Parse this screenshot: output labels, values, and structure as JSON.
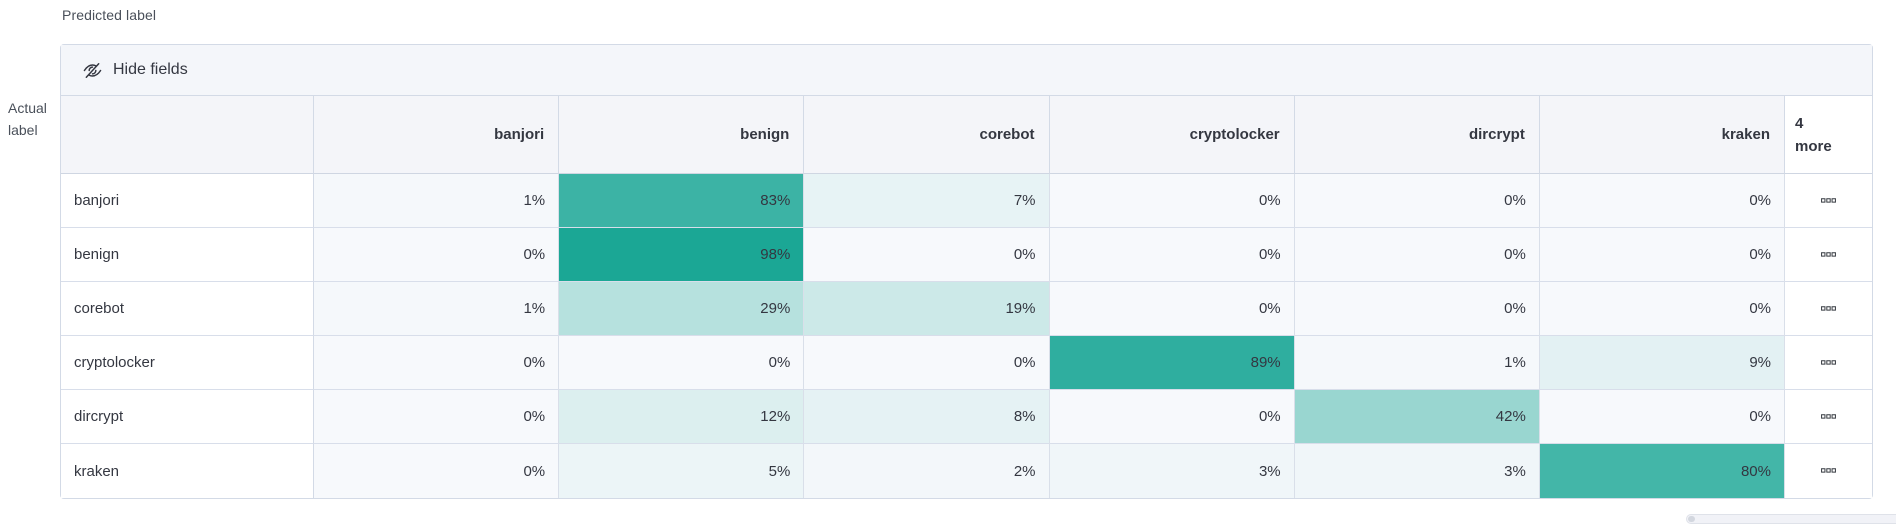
{
  "axes": {
    "predicted_label": "Predicted label",
    "actual_label_line1": "Actual",
    "actual_label_line2": "label"
  },
  "toolbar": {
    "hide_fields_label": "Hide fields",
    "hide_fields_icon": "eye-slash-icon"
  },
  "grid": {
    "columns": [
      "banjori",
      "benign",
      "corebot",
      "cryptolocker",
      "dircrypt",
      "kraken"
    ],
    "more_header": {
      "line1": "4",
      "line2": "more"
    },
    "value_suffix": "%",
    "row_actions_icon": "boxes-horizontal-icon",
    "rows": [
      {
        "label": "banjori",
        "values": [
          1,
          83,
          7,
          0,
          0,
          0
        ]
      },
      {
        "label": "benign",
        "values": [
          0,
          98,
          0,
          0,
          0,
          0
        ]
      },
      {
        "label": "corebot",
        "values": [
          1,
          29,
          19,
          0,
          0,
          0
        ]
      },
      {
        "label": "cryptolocker",
        "values": [
          0,
          0,
          0,
          89,
          1,
          9
        ]
      },
      {
        "label": "dircrypt",
        "values": [
          0,
          12,
          8,
          0,
          42,
          0
        ]
      },
      {
        "label": "kraken",
        "values": [
          0,
          5,
          2,
          3,
          3,
          80
        ]
      }
    ]
  },
  "heatmap": {
    "base_color": "#f7f9fc",
    "accent_color": "#16a593",
    "cell_text_color": "#343741"
  },
  "colors": {
    "panel_border": "#d3dae6",
    "header_background": "#f4f5f9",
    "toolbar_background": "#f4f6fa",
    "text": "#343741",
    "muted_text": "#4a505a"
  },
  "chart_data": {
    "type": "heatmap",
    "xlabel": "Predicted label",
    "ylabel": "Actual label",
    "x_categories": [
      "banjori",
      "benign",
      "corebot",
      "cryptolocker",
      "dircrypt",
      "kraken"
    ],
    "y_categories": [
      "banjori",
      "benign",
      "corebot",
      "cryptolocker",
      "dircrypt",
      "kraken"
    ],
    "values_percent": [
      [
        1,
        83,
        7,
        0,
        0,
        0
      ],
      [
        0,
        98,
        0,
        0,
        0,
        0
      ],
      [
        1,
        29,
        19,
        0,
        0,
        0
      ],
      [
        0,
        0,
        0,
        89,
        1,
        9
      ],
      [
        0,
        12,
        8,
        0,
        42,
        0
      ],
      [
        0,
        5,
        2,
        3,
        3,
        80
      ]
    ],
    "hidden_columns_indicator": "4 more",
    "legend": "none",
    "grid_lines": true
  }
}
